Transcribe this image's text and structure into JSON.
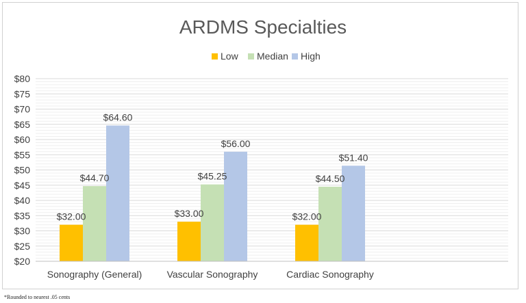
{
  "footnote": "*Rounded to nearest .05 cents",
  "chart_data": {
    "type": "bar",
    "title": "ARDMS Specialties",
    "xlabel": "",
    "ylabel": "",
    "categories": [
      "Sonography (General)",
      "Vascular Sonography",
      "Cardiac Sonography"
    ],
    "series": [
      {
        "name": "Low",
        "values": [
          32.0,
          33.0,
          32.0
        ],
        "labels": [
          "$32.00",
          "$33.00",
          "$32.00"
        ],
        "color": "#FFC000"
      },
      {
        "name": "Median",
        "values": [
          44.7,
          45.25,
          44.5
        ],
        "labels": [
          "$44.70",
          "$45.25",
          "$44.50"
        ],
        "color": "#C5E0B4"
      },
      {
        "name": "High",
        "values": [
          64.6,
          56.0,
          51.4
        ],
        "labels": [
          "$64.60",
          "$56.00",
          "$51.40"
        ],
        "color": "#B4C7E7"
      }
    ],
    "ylim": [
      20,
      80
    ],
    "yticks": [
      "$20",
      "$25",
      "$30",
      "$35",
      "$40",
      "$45",
      "$50",
      "$55",
      "$60",
      "$65",
      "$70",
      "$75",
      "$80"
    ],
    "legend_position": "top",
    "grid": true
  }
}
